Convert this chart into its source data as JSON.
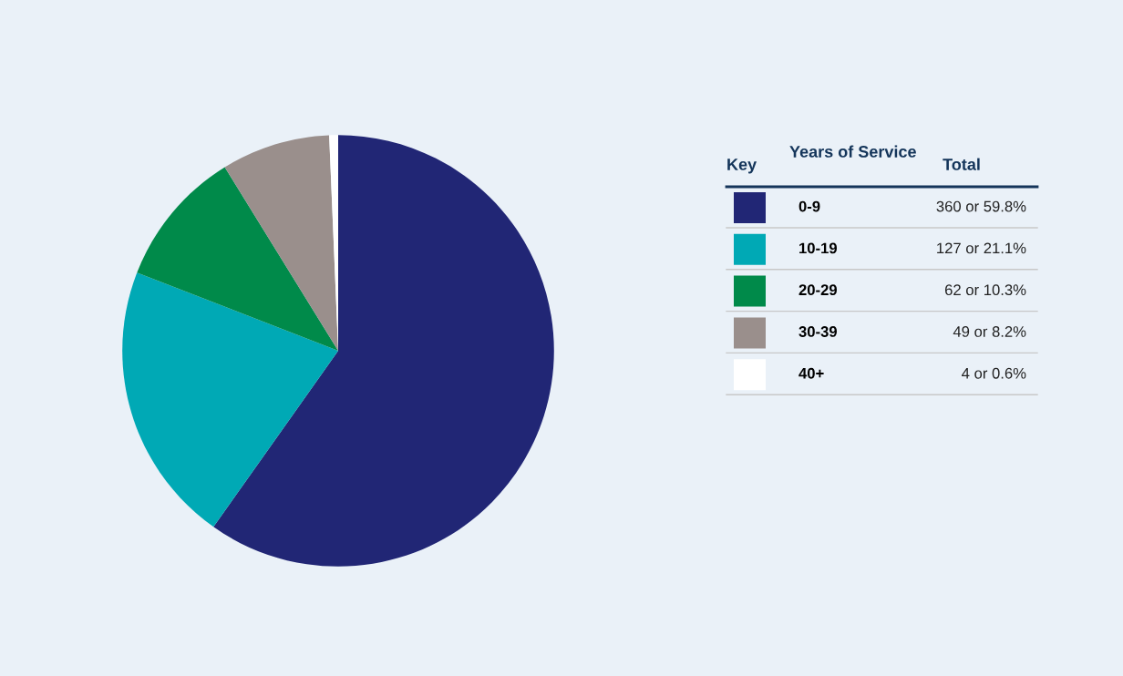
{
  "chart_data": {
    "type": "pie",
    "categories": [
      "0-9",
      "10-19",
      "20-29",
      "30-39",
      "40+"
    ],
    "values": [
      360,
      127,
      62,
      49,
      4
    ],
    "colors": [
      "#212675",
      "#00a9b5",
      "#008a4a",
      "#9a8f8c",
      "#ffffff"
    ],
    "value_labels": [
      "360 or 59.8%",
      "127 or 21.1%",
      "62 or 10.3%",
      "49 or 8.2%",
      "4 or 0.6%"
    ],
    "legend": "right",
    "legend_title": "Years of Service",
    "annotations": [
      "Key",
      "Total"
    ]
  }
}
